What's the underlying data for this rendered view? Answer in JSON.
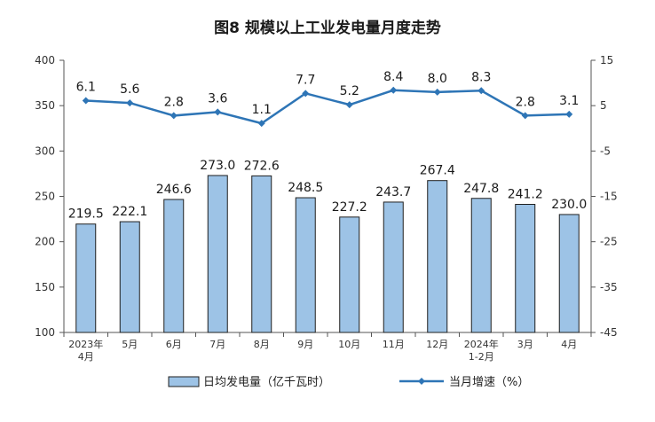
{
  "chart_data": {
    "type": "bar",
    "title": "图8  规模以上工业发电量月度走势",
    "categories": [
      [
        "2023年",
        "4月"
      ],
      [
        "5月"
      ],
      [
        "6月"
      ],
      [
        "7月"
      ],
      [
        "8月"
      ],
      [
        "9月"
      ],
      [
        "10月"
      ],
      [
        "11月"
      ],
      [
        "12月"
      ],
      [
        "2024年",
        "1-2月"
      ],
      [
        "3月"
      ],
      [
        "4月"
      ]
    ],
    "series": [
      {
        "name": "日均发电量（亿千瓦时）",
        "type": "bar",
        "axis": "left",
        "color": "#9DC3E6",
        "values": [
          219.5,
          222.1,
          246.6,
          273.0,
          272.6,
          248.5,
          227.2,
          243.7,
          267.4,
          247.8,
          241.2,
          230.0
        ],
        "labels": [
          "219.5",
          "222.1",
          "246.6",
          "273.0",
          "272.6",
          "248.5",
          "227.2",
          "243.7",
          "267.4",
          "247.8",
          "241.2",
          "230.0"
        ]
      },
      {
        "name": "当月增速（%）",
        "type": "line",
        "axis": "right",
        "color": "#2E75B6",
        "values": [
          6.1,
          5.6,
          2.8,
          3.6,
          1.1,
          7.7,
          5.2,
          8.4,
          8.0,
          8.3,
          2.8,
          3.1
        ],
        "labels": [
          "6.1",
          "5.6",
          "2.8",
          "3.6",
          "1.1",
          "7.7",
          "5.2",
          "8.4",
          "8.0",
          "8.3",
          "2.8",
          "3.1"
        ]
      }
    ],
    "y_left": {
      "ylim": [
        100,
        400
      ],
      "ticks": [
        "100",
        "150",
        "200",
        "250",
        "300",
        "350",
        "400"
      ]
    },
    "y_right": {
      "ylim": [
        -45,
        15
      ],
      "ticks": [
        "-45",
        "-35",
        "-25",
        "-15",
        "-5",
        "5",
        "15"
      ]
    },
    "grid": false,
    "legend_position": "bottom"
  }
}
